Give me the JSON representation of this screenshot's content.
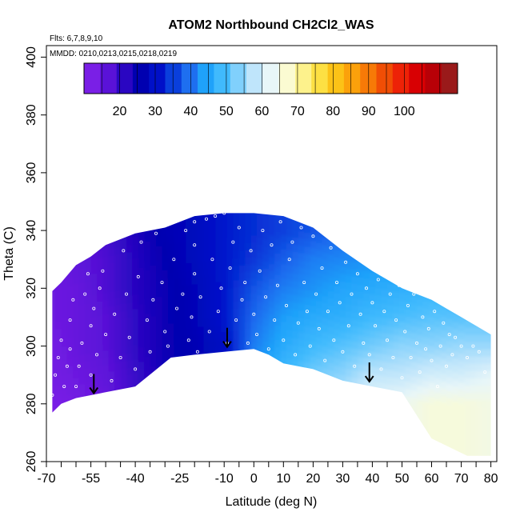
{
  "chart_data": {
    "type": "heatmap",
    "title": "ATOM2 Northbound CH2Cl2_WAS",
    "subtitle_lines": [
      "Flts: 6,7,8,9,10",
      "MMDD: 0210,0213,0215,0218,0219"
    ],
    "xlabel": "Latitude (deg N)",
    "ylabel": "Theta (C)",
    "xlim": [
      -70,
      82
    ],
    "ylim": [
      260,
      404
    ],
    "x_ticks": [
      -70,
      -55,
      -40,
      -25,
      -10,
      0,
      10,
      20,
      30,
      40,
      50,
      60,
      70,
      80
    ],
    "x_minor_ticks": [
      -65,
      -60,
      -50,
      -45,
      -35,
      -30,
      -20,
      -15,
      -5,
      5,
      15,
      25,
      35,
      45,
      55,
      65,
      75
    ],
    "y_ticks": [
      260,
      280,
      300,
      320,
      340,
      360,
      380,
      400
    ],
    "colorbar": {
      "ticks": [
        20,
        30,
        40,
        50,
        60,
        70,
        80,
        90,
        100
      ],
      "range": [
        10,
        115
      ],
      "colors": [
        "#7a1fe6",
        "#5a12d8",
        "#2a06c2",
        "#0000b0",
        "#0010c8",
        "#0a3fdc",
        "#1e6ff0",
        "#1fa2fa",
        "#40bafd",
        "#80d0fc",
        "#bfe5fb",
        "#e8f6f8",
        "#fbfbd2",
        "#fdf28c",
        "#fde043",
        "#fcc217",
        "#fba10b",
        "#f77a07",
        "#f04e05",
        "#ed2207",
        "#d80003",
        "#b80007",
        "#9a1a1a"
      ]
    },
    "field": {
      "description": "CH2Cl2 mixing ratio (ppt) vs latitude and potential temperature",
      "latitude": [
        -68,
        -60,
        -50,
        -40,
        -30,
        -20,
        -10,
        0,
        10,
        20,
        30,
        40,
        50,
        60,
        70,
        80
      ],
      "theta": [
        280,
        290,
        300,
        310,
        320,
        330,
        340
      ],
      "values": [
        [
          10,
          11,
          13,
          18,
          23,
          26,
          30,
          42,
          50,
          56,
          58,
          62,
          64,
          66,
          66,
          65
        ],
        [
          11,
          12,
          14,
          18,
          22,
          25,
          30,
          42,
          48,
          52,
          54,
          58,
          58,
          60,
          60,
          62
        ],
        [
          11,
          13,
          15,
          19,
          23,
          25,
          28,
          40,
          45,
          48,
          50,
          52,
          54,
          54,
          55,
          55
        ],
        [
          12,
          13,
          15,
          19,
          23,
          26,
          30,
          38,
          43,
          45,
          46,
          48,
          49,
          50,
          50,
          50
        ],
        [
          12,
          13,
          16,
          20,
          23,
          26,
          30,
          36,
          40,
          42,
          44,
          45,
          46,
          47,
          47,
          47
        ],
        [
          13,
          14,
          16,
          20,
          24,
          27,
          30,
          33,
          37,
          40,
          41,
          42,
          43,
          44,
          44,
          44
        ],
        [
          14,
          15,
          17,
          21,
          25,
          27,
          30,
          32,
          34,
          36,
          38,
          40,
          41,
          42,
          42,
          42
        ]
      ],
      "top_boundary": [
        [
          -68,
          319
        ],
        [
          -65,
          322
        ],
        [
          -60,
          328
        ],
        [
          -55,
          331
        ],
        [
          -50,
          335
        ],
        [
          -40,
          339
        ],
        [
          -30,
          341
        ],
        [
          -20,
          345
        ],
        [
          -10,
          346
        ],
        [
          0,
          346
        ],
        [
          10,
          345
        ],
        [
          15,
          343
        ],
        [
          20,
          341
        ],
        [
          30,
          333
        ],
        [
          40,
          326
        ],
        [
          50,
          320
        ],
        [
          60,
          316
        ],
        [
          65,
          313
        ],
        [
          70,
          310
        ],
        [
          75,
          307
        ],
        [
          80,
          304
        ]
      ],
      "bottom_boundary": [
        [
          80,
          262
        ],
        [
          72,
          262
        ],
        [
          60,
          268
        ],
        [
          50,
          284
        ],
        [
          40,
          286
        ],
        [
          30,
          288
        ],
        [
          20,
          292
        ],
        [
          10,
          294
        ],
        [
          5,
          297
        ],
        [
          0,
          299
        ],
        [
          -10,
          298
        ],
        [
          -20,
          297
        ],
        [
          -28,
          296
        ],
        [
          -40,
          286
        ],
        [
          -50,
          284
        ],
        [
          -60,
          282
        ],
        [
          -65,
          280
        ],
        [
          -68,
          277
        ]
      ]
    },
    "sample_points": [
      [
        -68,
        283
      ],
      [
        -67,
        290
      ],
      [
        -66,
        296
      ],
      [
        -65,
        302
      ],
      [
        -64,
        286
      ],
      [
        -63,
        293
      ],
      [
        -62,
        299
      ],
      [
        -62,
        309
      ],
      [
        -61,
        316
      ],
      [
        -60,
        286
      ],
      [
        -59,
        293
      ],
      [
        -58,
        301
      ],
      [
        -57,
        318
      ],
      [
        -56,
        325
      ],
      [
        -55,
        290
      ],
      [
        -55,
        307
      ],
      [
        -54,
        313
      ],
      [
        -53,
        297
      ],
      [
        -52,
        320
      ],
      [
        -51,
        326
      ],
      [
        -50,
        304
      ],
      [
        -48,
        288
      ],
      [
        -47,
        311
      ],
      [
        -45,
        296
      ],
      [
        -44,
        333
      ],
      [
        -43,
        318
      ],
      [
        -42,
        303
      ],
      [
        -40,
        292
      ],
      [
        -39,
        324
      ],
      [
        -38,
        336
      ],
      [
        -36,
        309
      ],
      [
        -35,
        298
      ],
      [
        -34,
        316
      ],
      [
        -33,
        339
      ],
      [
        -31,
        322
      ],
      [
        -30,
        305
      ],
      [
        -29,
        300
      ],
      [
        -27,
        330
      ],
      [
        -26,
        313
      ],
      [
        -24,
        318
      ],
      [
        -23,
        340
      ],
      [
        -22,
        302
      ],
      [
        -21,
        310
      ],
      [
        -20,
        325
      ],
      [
        -20,
        335
      ],
      [
        -20,
        343
      ],
      [
        -19,
        298
      ],
      [
        -18,
        317
      ],
      [
        -16,
        344
      ],
      [
        -15,
        305
      ],
      [
        -14,
        330
      ],
      [
        -13,
        345
      ],
      [
        -12,
        312
      ],
      [
        -11,
        320
      ],
      [
        -10,
        346
      ],
      [
        -9,
        301
      ],
      [
        -8,
        327
      ],
      [
        -7,
        336
      ],
      [
        -6,
        309
      ],
      [
        -5,
        341
      ],
      [
        -4,
        316
      ],
      [
        -3,
        322
      ],
      [
        -2,
        301
      ],
      [
        -1,
        333
      ],
      [
        0,
        311
      ],
      [
        1,
        304
      ],
      [
        2,
        326
      ],
      [
        3,
        340
      ],
      [
        4,
        317
      ],
      [
        5,
        299
      ],
      [
        6,
        335
      ],
      [
        7,
        309
      ],
      [
        8,
        321
      ],
      [
        9,
        343
      ],
      [
        10,
        302
      ],
      [
        11,
        314
      ],
      [
        12,
        330
      ],
      [
        13,
        336
      ],
      [
        14,
        297
      ],
      [
        15,
        308
      ],
      [
        16,
        341
      ],
      [
        17,
        322
      ],
      [
        18,
        312
      ],
      [
        19,
        300
      ],
      [
        20,
        338
      ],
      [
        21,
        318
      ],
      [
        22,
        306
      ],
      [
        23,
        327
      ],
      [
        24,
        295
      ],
      [
        25,
        312
      ],
      [
        26,
        334
      ],
      [
        27,
        302
      ],
      [
        28,
        322
      ],
      [
        29,
        315
      ],
      [
        30,
        298
      ],
      [
        31,
        329
      ],
      [
        32,
        307
      ],
      [
        33,
        318
      ],
      [
        34,
        293
      ],
      [
        35,
        325
      ],
      [
        36,
        311
      ],
      [
        37,
        301
      ],
      [
        38,
        320
      ],
      [
        39,
        297
      ],
      [
        40,
        315
      ],
      [
        41,
        307
      ],
      [
        42,
        323
      ],
      [
        43,
        292
      ],
      [
        44,
        312
      ],
      [
        45,
        302
      ],
      [
        46,
        318
      ],
      [
        47,
        296
      ],
      [
        48,
        309
      ],
      [
        49,
        321
      ],
      [
        50,
        289
      ],
      [
        51,
        305
      ],
      [
        52,
        314
      ],
      [
        53,
        296
      ],
      [
        54,
        318
      ],
      [
        55,
        301
      ],
      [
        56,
        291
      ],
      [
        57,
        310
      ],
      [
        58,
        299
      ],
      [
        59,
        306
      ],
      [
        60,
        295
      ],
      [
        61,
        312
      ],
      [
        62,
        286
      ],
      [
        63,
        300
      ],
      [
        64,
        308
      ],
      [
        65,
        293
      ],
      [
        66,
        304
      ],
      [
        67,
        297
      ],
      [
        68,
        303
      ],
      [
        70,
        300
      ],
      [
        72,
        296
      ],
      [
        74,
        300
      ],
      [
        76,
        298
      ],
      [
        78,
        291
      ]
    ],
    "arrows": [
      [
        -54,
        287
      ],
      [
        -9,
        303
      ],
      [
        39,
        291
      ]
    ]
  }
}
